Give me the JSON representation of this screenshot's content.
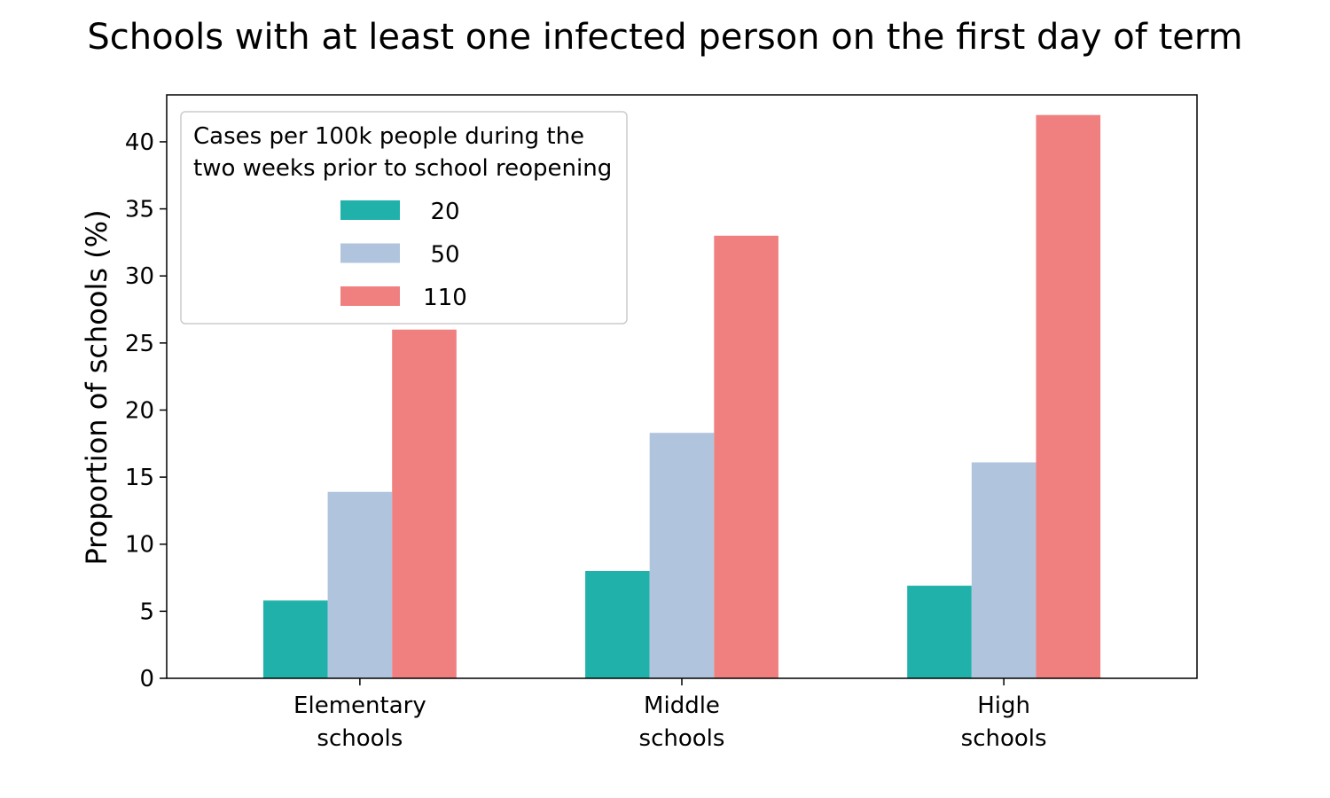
{
  "chart_data": {
    "type": "bar",
    "title": "Schools with at least one infected person on the first day of term",
    "xlabel": "",
    "ylabel": "Proportion of schools (%)",
    "categories": [
      [
        "Elementary",
        "schools"
      ],
      [
        "Middle",
        "schools"
      ],
      [
        "High",
        "schools"
      ]
    ],
    "series": [
      {
        "name": "20",
        "values": [
          5.8,
          8.0,
          6.9
        ],
        "color": "#20b2aa"
      },
      {
        "name": "50",
        "values": [
          13.9,
          18.3,
          16.1
        ],
        "color": "#b0c4de"
      },
      {
        "name": "110",
        "values": [
          26.0,
          33.0,
          42.0
        ],
        "color": "#f08080"
      }
    ],
    "ylim": [
      0,
      43.5
    ],
    "yticks": [
      0,
      5,
      10,
      15,
      20,
      25,
      30,
      35,
      40
    ],
    "grid": false,
    "legend": {
      "title": [
        "Cases per 100k people during the",
        "two weeks prior to school reopening"
      ],
      "placement": "top-left"
    }
  }
}
